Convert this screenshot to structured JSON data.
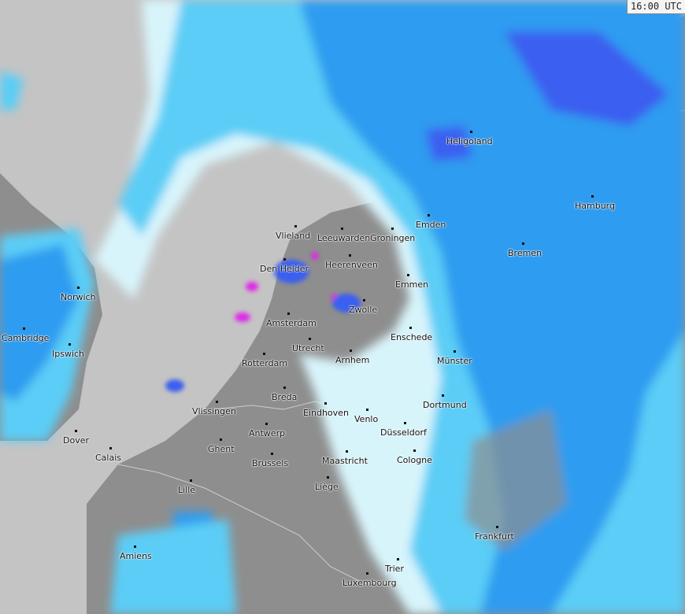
{
  "timestamp": "16:00 UTC",
  "colors": {
    "sea": "#c4c4c4",
    "land": "#8e8e8e",
    "precip_very_light": "#d8f4fb",
    "precip_light": "#5ccdf6",
    "precip_moderate": "#2e9cf0",
    "precip_heavy": "#3a5ff0",
    "precip_intense": "#e028e8"
  },
  "cities": [
    {
      "name": "Heligoland"
    },
    {
      "name": "Hamburg"
    },
    {
      "name": "Emden"
    },
    {
      "name": "Bremen"
    },
    {
      "name": "Vlieland"
    },
    {
      "name": "Leeuwarden"
    },
    {
      "name": "Groningen"
    },
    {
      "name": "Den Helder"
    },
    {
      "name": "Heerenveen"
    },
    {
      "name": "Emmen"
    },
    {
      "name": "Zwolle"
    },
    {
      "name": "Amsterdam"
    },
    {
      "name": "Enschede"
    },
    {
      "name": "Utrecht"
    },
    {
      "name": "Rotterdam"
    },
    {
      "name": "Arnhem"
    },
    {
      "name": "Münster"
    },
    {
      "name": "Breda"
    },
    {
      "name": "Vlissingen"
    },
    {
      "name": "Eindhoven"
    },
    {
      "name": "Venlo"
    },
    {
      "name": "Dortmund"
    },
    {
      "name": "Düsseldorf"
    },
    {
      "name": "Antwerp"
    },
    {
      "name": "Ghent"
    },
    {
      "name": "Brussels"
    },
    {
      "name": "Maastricht"
    },
    {
      "name": "Cologne"
    },
    {
      "name": "Lille"
    },
    {
      "name": "Liège"
    },
    {
      "name": "Calais"
    },
    {
      "name": "Dover"
    },
    {
      "name": "Norwich"
    },
    {
      "name": "Cambridge"
    },
    {
      "name": "Ipswich"
    },
    {
      "name": "Frankfurt"
    },
    {
      "name": "Amiens"
    },
    {
      "name": "Trier"
    },
    {
      "name": "Luxembourg"
    }
  ]
}
